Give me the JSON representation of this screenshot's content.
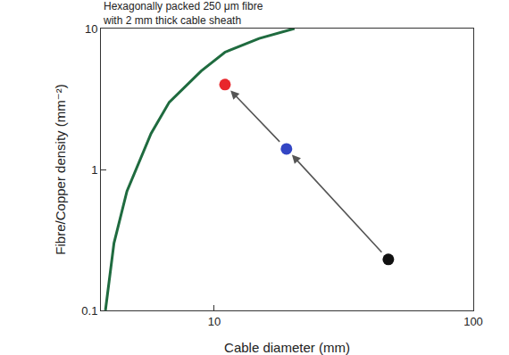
{
  "chart_data": {
    "type": "scatter",
    "log": true,
    "grid": false,
    "x_label": "Cable diameter (mm)",
    "y_label": "Fibre/Copper density (mm⁻²)",
    "xlim": [
      3.65,
      100
    ],
    "ylim": [
      0.1,
      10
    ],
    "xticks": [
      10,
      100
    ],
    "yticks": [
      0.1,
      1,
      10
    ],
    "annotations": [
      {
        "text": [
          "Hexagonally packed 250 μm fibre",
          "with 2 mm thick cable sheath"
        ]
      }
    ],
    "series": [
      {
        "type": "line",
        "color": "#1f6b3f",
        "line_style": "solid",
        "x": [
          3.8,
          4.1,
          4.6,
          5.7,
          6.7,
          8.9,
          11,
          14.9,
          20.4
        ],
        "values": [
          0.1,
          0.3,
          0.7,
          1.8,
          3,
          5,
          6.8,
          8.5,
          10
        ]
      },
      {
        "type": "scatter",
        "marker": "circle",
        "colors": [
          "#111111",
          "#3346c4",
          "#e8262b"
        ],
        "x": [
          47,
          19,
          11
        ],
        "values": [
          0.23,
          1.4,
          4.0
        ],
        "arrows": true
      }
    ]
  }
}
